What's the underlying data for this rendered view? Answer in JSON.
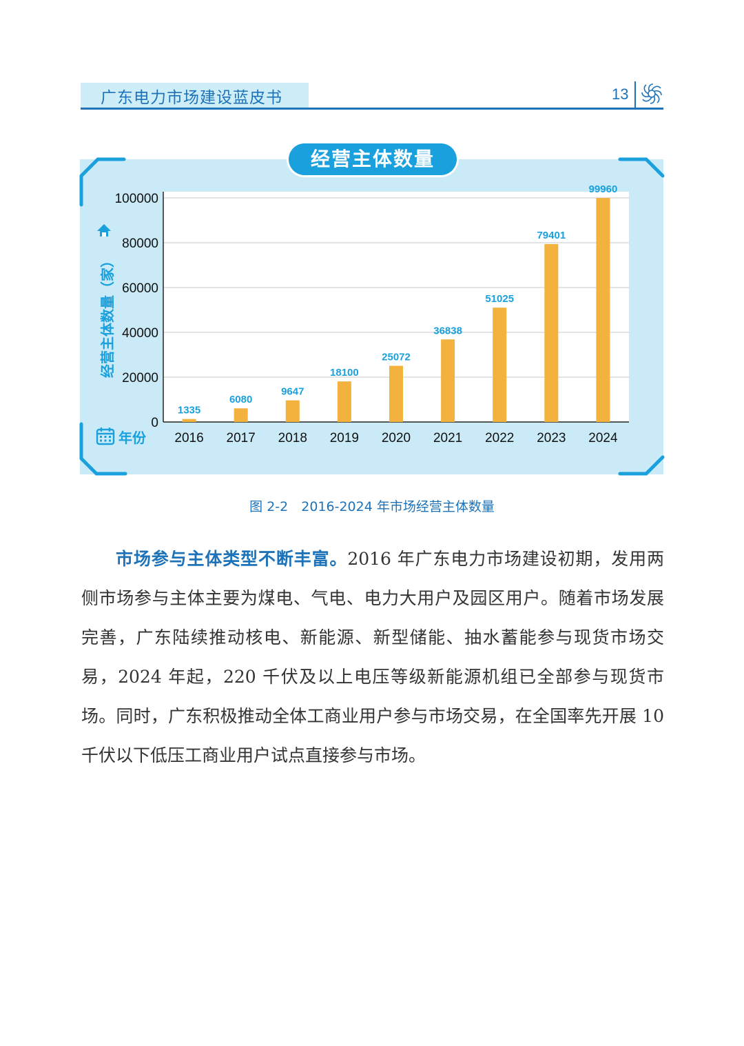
{
  "header": {
    "book_title": "广东电力市场建设蓝皮书",
    "page_number": "13"
  },
  "chart_data": {
    "type": "bar",
    "title": "经营主体数量",
    "ylabel": "经营主体数量（家）",
    "xlabel": "年份",
    "categories": [
      "2016",
      "2017",
      "2018",
      "2019",
      "2020",
      "2021",
      "2022",
      "2023",
      "2024"
    ],
    "values": [
      1335,
      6080,
      9647,
      18100,
      25072,
      36838,
      51025,
      79401,
      99960
    ],
    "ylim": [
      0,
      100000
    ],
    "yticks": [
      0,
      20000,
      40000,
      60000,
      80000,
      100000
    ],
    "grid": true,
    "bar_color": "#f3b13e",
    "label_color": "#1aa0dc"
  },
  "caption": "图 2-2　2016-2024 年市场经营主体数量",
  "paragraph": {
    "lead": "市场参与主体类型不断丰富。",
    "body": "2016 年广东电力市场建设初期，发用两侧市场参与主体主要为煤电、气电、电力大用户及园区用户。随着市场发展完善，广东陆续推动核电、新能源、新型储能、抽水蓄能参与现货市场交易，2024 年起，220 千伏及以上电压等级新能源机组已全部参与现货市场。同时，广东积极推动全体工商业用户参与市场交易，在全国率先开展 10 千伏以下低压工商业用户试点直接参与市场。"
  },
  "colors": {
    "brand_blue": "#1e73b8",
    "accent_cyan": "#1aa0dc",
    "frame_bg": "#c9eaf6",
    "header_bg": "#cdeef8"
  }
}
